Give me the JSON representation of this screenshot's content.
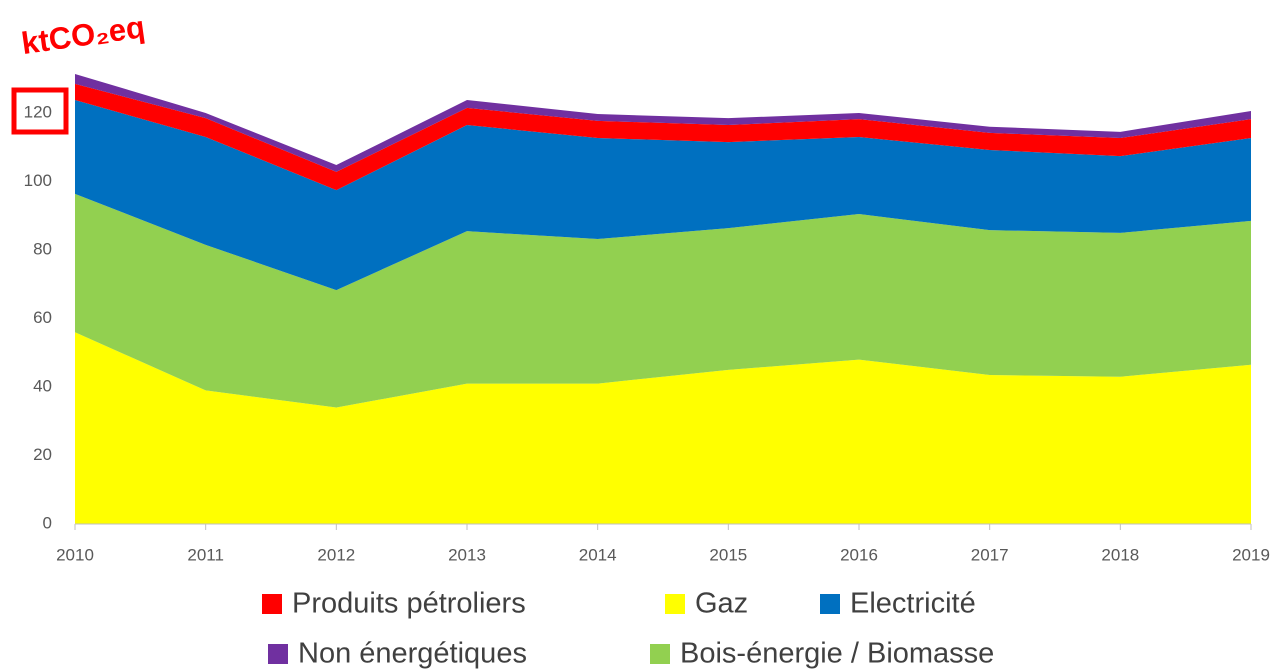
{
  "chart_data": {
    "type": "stacked_area",
    "title": "ktCO₂eq",
    "categories": [
      "2010",
      "2011",
      "2012",
      "2013",
      "2014",
      "2015",
      "2016",
      "2017",
      "2018",
      "2019"
    ],
    "series": [
      {
        "name": "Gaz",
        "color": "#ffff00",
        "values": [
          56,
          39,
          34,
          41,
          41,
          45,
          48,
          43.5,
          43,
          46.5
        ]
      },
      {
        "name": "Bois-énergie / Biomasse",
        "color": "#92d050",
        "values": [
          40.4,
          42.5,
          34.3,
          44.5,
          42.2,
          41.4,
          42.5,
          42.3,
          42,
          42
        ]
      },
      {
        "name": "Electricité",
        "color": "#0070c0",
        "values": [
          27.4,
          31.5,
          29.2,
          31,
          29.5,
          25.1,
          22.5,
          23.4,
          22.4,
          24.2
        ]
      },
      {
        "name": "Produits pétroliers",
        "color": "#ff0000",
        "values": [
          4.7,
          5.5,
          5.3,
          5,
          5,
          5,
          5.2,
          5,
          5.3,
          5.5
        ]
      },
      {
        "name": "Non énergétiques",
        "color": "#7030a0",
        "values": [
          2.9,
          1.5,
          2,
          2.3,
          2,
          2,
          1.8,
          1.8,
          1.8,
          2.4
        ]
      }
    ],
    "ylim": [
      0,
      140
    ],
    "yticks": [
      0,
      20,
      40,
      60,
      80,
      100,
      120
    ],
    "grid": false
  }
}
